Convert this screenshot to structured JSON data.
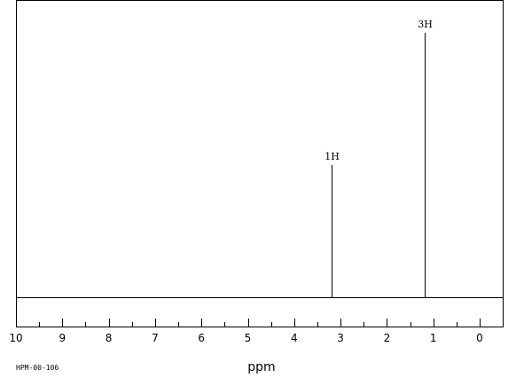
{
  "chart_data": {
    "type": "line",
    "xlabel": "ppm",
    "xlim": [
      10,
      -0.5
    ],
    "x_reversed": true,
    "xticks": [
      "10",
      "9",
      "8",
      "7",
      "6",
      "5",
      "4",
      "3",
      "2",
      "1",
      "0"
    ],
    "peaks": [
      {
        "x": 3.2,
        "height": 0.5,
        "label": "1H"
      },
      {
        "x": 1.18,
        "height": 1.0,
        "label": "3H"
      }
    ],
    "code": "HPM-00-106",
    "grid": false,
    "colors": {
      "line": "#000000",
      "background": "#ffffff"
    }
  }
}
